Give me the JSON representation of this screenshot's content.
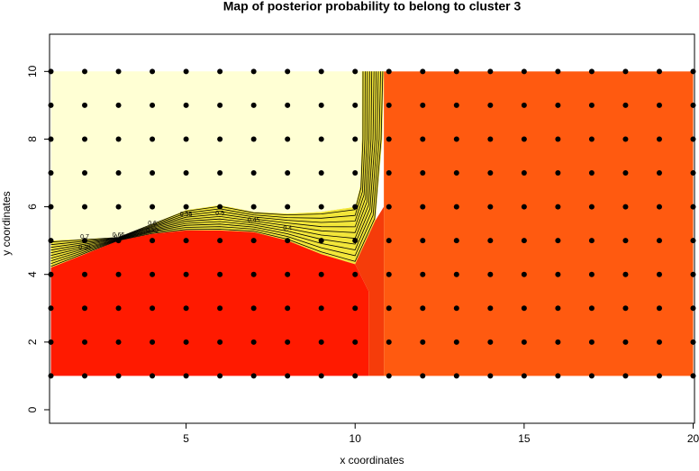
{
  "chart_data": {
    "type": "scatter",
    "title": "Map of posterior probability to belong to cluster  3",
    "x_label": "x coordinates",
    "y_label": "y coordinates",
    "grid_x": [
      1,
      2,
      3,
      4,
      5,
      6,
      7,
      8,
      9,
      10,
      11,
      12,
      13,
      14,
      15,
      16,
      17,
      18,
      19,
      20
    ],
    "grid_y": [
      1,
      2,
      3,
      4,
      5,
      6,
      7,
      8,
      9,
      10
    ],
    "xlim": [
      0.96,
      20.04
    ],
    "ylim": [
      -0.4,
      11.1
    ],
    "xticks": [
      5,
      10,
      15,
      20
    ],
    "yticks": [
      0,
      2,
      4,
      6,
      8,
      10
    ],
    "point_color": "#000000",
    "palette": [
      "#ffffd4",
      "#f2e63a",
      "#ff1a00",
      "#ff5a10"
    ],
    "contour_levels": [
      0.7,
      0.65,
      0.6,
      0.55,
      0.5,
      0.45,
      0.4,
      0.35,
      0.3,
      0.25
    ]
  }
}
